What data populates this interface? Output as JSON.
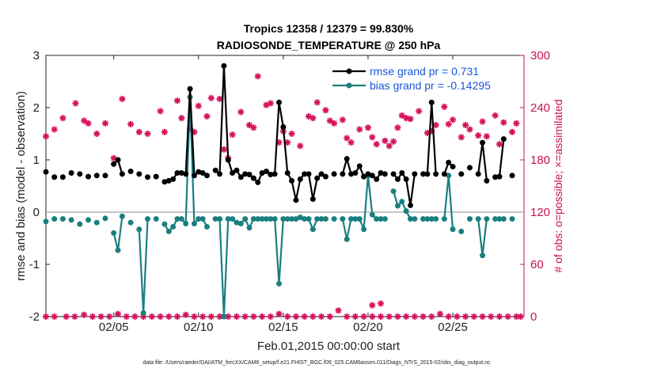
{
  "chart_data": {
    "type": "line",
    "title": "Tropics 12358 / 12379 = 99.830%",
    "subtitle": "RADIOSONDE_TEMPERATURE @ 250 hPa",
    "xlabel": "Feb.01,2015 00:00:00 start",
    "ylabel": "rmse and bias (model - observation)",
    "y2label": "# of obs: o=possible; ×=assimilated",
    "footnote": "data file: /Users/raeder/DAI/ATM_forcXX/CAM6_setup/f.e21.FHIST_BGC.f09_025.CAM6assim.011/Diags_NTrS_2015-02/obs_diag_output.nc",
    "xlim": [
      1,
      29.2
    ],
    "ylim": [
      -2,
      3
    ],
    "y2lim": [
      0,
      300
    ],
    "x_ticks": [
      5,
      10,
      15,
      20,
      25
    ],
    "x_tick_labels": [
      "02/05",
      "02/10",
      "02/15",
      "02/20",
      "02/25"
    ],
    "y_ticks": [
      -2,
      -1,
      0,
      1,
      2,
      3
    ],
    "y_tick_labels": [
      "-2",
      "-1",
      "0",
      "1",
      "2",
      "3"
    ],
    "y2_ticks": [
      0,
      60,
      120,
      180,
      240,
      300
    ],
    "y2_tick_labels": [
      "0",
      "60",
      "120",
      "180",
      "240",
      "300"
    ],
    "x": [
      1.0,
      1.25,
      1.5,
      1.75,
      2.0,
      2.25,
      2.5,
      2.75,
      3.0,
      3.25,
      3.5,
      3.75,
      4.0,
      4.25,
      4.5,
      4.75,
      5.0,
      5.25,
      5.5,
      5.75,
      6.0,
      6.25,
      6.5,
      6.75,
      7.0,
      7.25,
      7.5,
      7.75,
      8.0,
      8.25,
      8.5,
      8.75,
      9.0,
      9.25,
      9.5,
      9.75,
      10.0,
      10.25,
      10.5,
      10.75,
      11.0,
      11.25,
      11.5,
      11.75,
      12.0,
      12.25,
      12.5,
      12.75,
      13.0,
      13.25,
      13.5,
      13.75,
      14.0,
      14.25,
      14.5,
      14.75,
      15.0,
      15.25,
      15.5,
      15.75,
      16.0,
      16.25,
      16.5,
      16.75,
      17.0,
      17.25,
      17.5,
      17.75,
      18.0,
      18.25,
      18.5,
      18.75,
      19.0,
      19.25,
      19.5,
      19.75,
      20.0,
      20.25,
      20.5,
      20.75,
      21.0,
      21.25,
      21.5,
      21.75,
      22.0,
      22.25,
      22.5,
      22.75,
      23.0,
      23.25,
      23.5,
      23.75,
      24.0,
      24.25,
      24.5,
      24.75,
      25.0,
      25.25,
      25.5,
      25.75,
      26.0,
      26.25,
      26.5,
      26.75,
      27.0,
      27.25,
      27.5,
      27.75,
      28.0,
      28.25,
      28.5,
      28.75,
      29.0
    ],
    "series": [
      {
        "name": "rmse grand pr = 0.731",
        "axis": "left",
        "color": "#000000",
        "values": [
          0.77,
          null,
          0.67,
          null,
          0.67,
          null,
          0.75,
          null,
          0.73,
          null,
          0.68,
          null,
          0.7,
          null,
          0.7,
          null,
          0.92,
          1.0,
          0.73,
          null,
          0.78,
          null,
          0.73,
          null,
          0.67,
          null,
          0.68,
          null,
          0.58,
          0.6,
          0.63,
          0.75,
          0.75,
          0.73,
          2.36,
          0.7,
          0.77,
          0.75,
          0.7,
          null,
          0.8,
          0.73,
          2.8,
          1.0,
          0.75,
          0.8,
          0.67,
          0.73,
          0.72,
          0.65,
          0.57,
          0.75,
          0.78,
          0.72,
          0.73,
          2.1,
          1.63,
          0.75,
          0.6,
          0.23,
          0.63,
          0.73,
          0.73,
          0.25,
          0.65,
          0.73,
          0.68,
          null,
          0.73,
          null,
          0.73,
          1.02,
          0.73,
          0.75,
          0.88,
          0.68,
          0.73,
          0.7,
          0.63,
          0.75,
          0.73,
          null,
          0.73,
          0.63,
          0.75,
          0.63,
          0.13,
          0.73,
          null,
          0.73,
          0.73,
          2.1,
          0.73,
          null,
          0.73,
          0.95,
          0.87,
          null,
          0.73,
          null,
          0.85,
          null,
          0.73,
          1.33,
          0.6,
          null,
          0.67,
          0.68,
          1.4,
          null,
          0.7,
          null,
          null
        ],
        "marker": "o"
      },
      {
        "name": "bias grand pr = -0.14295",
        "axis": "left",
        "color": "#1a7f7f",
        "values": [
          -0.18,
          null,
          -0.13,
          null,
          -0.13,
          null,
          -0.15,
          null,
          -0.23,
          null,
          -0.15,
          null,
          -0.2,
          null,
          -0.12,
          null,
          -0.4,
          -0.73,
          -0.08,
          null,
          -0.2,
          null,
          -0.33,
          -1.93,
          -0.13,
          null,
          -0.13,
          null,
          -0.23,
          -0.37,
          -0.28,
          -0.13,
          -0.13,
          -0.22,
          2.2,
          -0.22,
          -0.13,
          -0.13,
          -0.28,
          null,
          -0.13,
          -0.13,
          -2.0,
          -0.13,
          -0.13,
          -0.2,
          -0.22,
          -0.13,
          -0.3,
          -0.13,
          -0.13,
          -0.13,
          -0.13,
          -0.13,
          -0.13,
          -1.37,
          -0.13,
          -0.13,
          -0.13,
          -0.13,
          -0.1,
          -0.13,
          -0.13,
          -0.33,
          -0.13,
          -0.13,
          -0.13,
          null,
          -0.13,
          null,
          -0.13,
          -0.52,
          -0.13,
          -0.13,
          -0.13,
          -0.33,
          0.7,
          -0.05,
          -0.13,
          -0.13,
          -0.13,
          null,
          0.4,
          0.12,
          0.2,
          0.02,
          -0.13,
          -0.13,
          null,
          -0.13,
          -0.13,
          -0.13,
          -0.13,
          null,
          -0.13,
          0.7,
          -0.33,
          null,
          -0.37,
          null,
          -0.13,
          null,
          -0.13,
          -0.83,
          -0.13,
          null,
          -0.13,
          -0.13,
          -0.13,
          null,
          -0.13,
          null,
          null
        ],
        "marker": "o"
      },
      {
        "name": "obs possible",
        "axis": "right",
        "color": "#d6125d",
        "marker": "o",
        "x": [
          1.0,
          1.5,
          2.2,
          2.7,
          3.25,
          3.75,
          4.25,
          4.75,
          5.25,
          5.75,
          6.25,
          6.75,
          7.25,
          7.75,
          8.25,
          8.75,
          9.25,
          9.75,
          10.25,
          10.75,
          11.25,
          11.75,
          12.25,
          12.75,
          13.25,
          13.75,
          14.25,
          14.75,
          15.25,
          15.75,
          16.25,
          16.75,
          17.25,
          17.75,
          18.25,
          18.75,
          19.25,
          19.75,
          20.25,
          20.75,
          21.25,
          21.75,
          22.25,
          22.75,
          23.25,
          23.75,
          24.25,
          24.75,
          25.25,
          25.75,
          26.25,
          26.75,
          27.25,
          27.75,
          28.25,
          28.75,
          29.0
        ],
        "values": [
          0,
          0,
          0,
          0,
          2,
          0,
          0,
          0,
          3,
          0,
          0,
          0,
          0,
          0,
          0,
          0,
          2,
          0,
          0,
          0,
          0,
          0,
          0,
          0,
          0,
          0,
          0,
          3,
          0,
          0,
          0,
          0,
          0,
          0,
          7,
          0,
          0,
          0,
          0,
          0,
          0,
          0,
          0,
          0,
          0,
          0,
          3,
          0,
          0,
          0,
          0,
          0,
          0,
          0,
          0,
          0,
          0
        ]
      },
      {
        "name": "obs assimilated",
        "axis": "right",
        "color": "#d6125d",
        "marker": "x",
        "x": [
          1.0,
          1.25,
          1.5,
          2.0,
          2.25,
          2.75,
          3.25,
          3.5,
          4.0,
          4.5,
          5.0,
          5.25,
          5.5,
          6.0,
          6.5,
          7.0,
          7.25,
          7.75,
          8.0,
          8.25,
          8.75,
          9.0,
          9.5,
          9.75,
          10.0,
          10.5,
          10.75,
          11.25,
          11.5,
          11.75,
          12.0,
          12.5,
          13.0,
          13.25,
          13.5,
          14.0,
          14.25,
          14.75,
          15.0,
          15.25,
          15.5,
          16.0,
          16.5,
          16.75,
          17.0,
          17.5,
          17.75,
          18.0,
          18.5,
          18.75,
          19.0,
          19.5,
          20.0,
          20.25,
          20.5,
          21.0,
          21.25,
          21.5,
          21.75,
          22.0,
          22.25,
          22.5,
          23.0,
          23.5,
          23.75,
          24.0,
          24.5,
          24.75,
          25.0,
          25.5,
          25.75,
          26.0,
          26.5,
          26.75,
          27.0,
          27.5,
          27.75,
          28.0,
          28.5,
          28.75
        ],
        "values": [
          207,
          null,
          215,
          228,
          null,
          245,
          225,
          222,
          210,
          222,
          182,
          null,
          250,
          221,
          212,
          210,
          null,
          236,
          212,
          null,
          248,
          228,
          216,
          212,
          242,
          230,
          251,
          250,
          192,
          182,
          209,
          235,
          220,
          217,
          276,
          243,
          245,
          200,
          213,
          200,
          210,
          196,
          230,
          228,
          246,
          237,
          225,
          222,
          226,
          205,
          200,
          215,
          217,
          206,
          198,
          202,
          196,
          201,
          217,
          231,
          228,
          227,
          236,
          211,
          213,
          220,
          241,
          221,
          226,
          206,
          220,
          215,
          208,
          224,
          207,
          231,
          198,
          223,
          212,
          222
        ]
      }
    ],
    "extra_low_points": {
      "x": [
        20.25,
        20.75
      ],
      "values": [
        13,
        15
      ]
    }
  }
}
